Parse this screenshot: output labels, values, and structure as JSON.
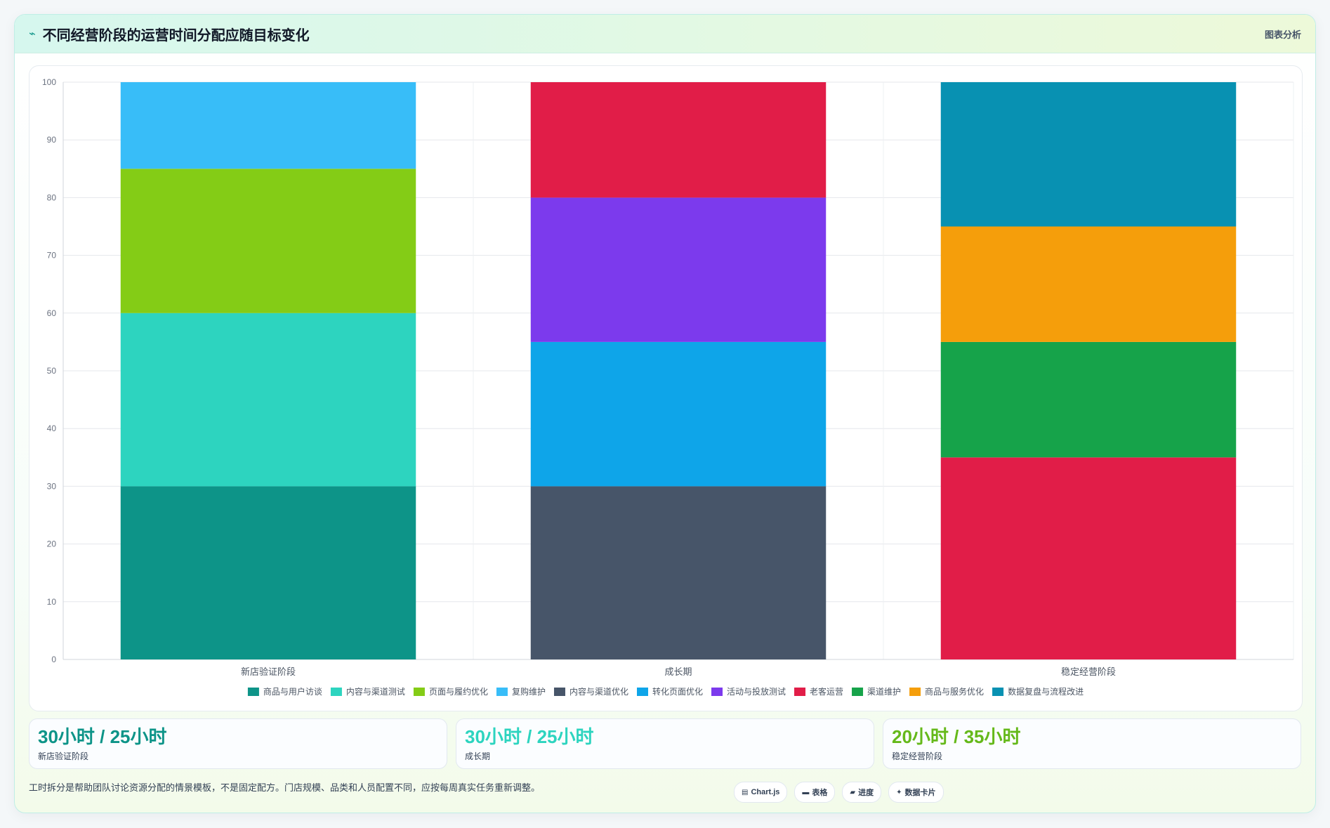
{
  "header": {
    "title": "不同经营阶段的运营时间分配应随目标变化",
    "tag": "图表分析"
  },
  "chart_data": {
    "type": "bar",
    "stacked": true,
    "categories": [
      "新店验证阶段",
      "成长期",
      "稳定经营阶段"
    ],
    "ylim": [
      0,
      100
    ],
    "yticks": [
      0,
      10,
      20,
      30,
      40,
      50,
      60,
      70,
      80,
      90,
      100
    ],
    "grid": true,
    "legend_position": "bottom",
    "series": [
      {
        "name": "商品与用户访谈",
        "color": "#0d9488",
        "values": [
          30,
          0,
          0
        ]
      },
      {
        "name": "内容与渠道测试",
        "color": "#2dd4bf",
        "values": [
          30,
          0,
          0
        ]
      },
      {
        "name": "页面与履约优化",
        "color": "#84cc16",
        "values": [
          25,
          0,
          0
        ]
      },
      {
        "name": "复购维护",
        "color": "#38bdf8",
        "values": [
          15,
          0,
          0
        ]
      },
      {
        "name": "内容与渠道优化",
        "color": "#475569",
        "values": [
          0,
          30,
          0
        ]
      },
      {
        "name": "转化页面优化",
        "color": "#0ea5e9",
        "values": [
          0,
          25,
          0
        ]
      },
      {
        "name": "活动与投放测试",
        "color": "#7c3aed",
        "values": [
          0,
          25,
          0
        ]
      },
      {
        "name": "老客运营",
        "color": "#e11d48",
        "values": [
          0,
          20,
          35
        ]
      },
      {
        "name": "渠道维护",
        "color": "#16a34a",
        "values": [
          0,
          0,
          20
        ]
      },
      {
        "name": "商品与服务优化",
        "color": "#f59e0b",
        "values": [
          0,
          0,
          20
        ]
      },
      {
        "name": "数据复盘与流程改进",
        "color": "#0891b2",
        "values": [
          0,
          0,
          25
        ]
      }
    ]
  },
  "stats": [
    {
      "value": "30小时 / 25小时",
      "label": "新店验证阶段",
      "color": "#0d9488"
    },
    {
      "value": "30小时 / 25小时",
      "label": "成长期",
      "color": "#2dd4bf"
    },
    {
      "value": "20小时 / 35小时",
      "label": "稳定经营阶段",
      "color": "#65b91a"
    }
  ],
  "footer": {
    "note": "工时拆分是帮助团队讨论资源分配的情景模板，不是固定配方。门店规模、品类和人员配置不同，应按每周真实任务重新调整。",
    "pills": [
      {
        "icon": "chart-icon",
        "glyph": "▤",
        "label": "Chart.js"
      },
      {
        "icon": "table-icon",
        "glyph": "▬",
        "label": "表格"
      },
      {
        "icon": "progress-icon",
        "glyph": "▰",
        "label": "进度"
      },
      {
        "icon": "card-icon",
        "glyph": "✦",
        "label": "数据卡片"
      }
    ]
  }
}
